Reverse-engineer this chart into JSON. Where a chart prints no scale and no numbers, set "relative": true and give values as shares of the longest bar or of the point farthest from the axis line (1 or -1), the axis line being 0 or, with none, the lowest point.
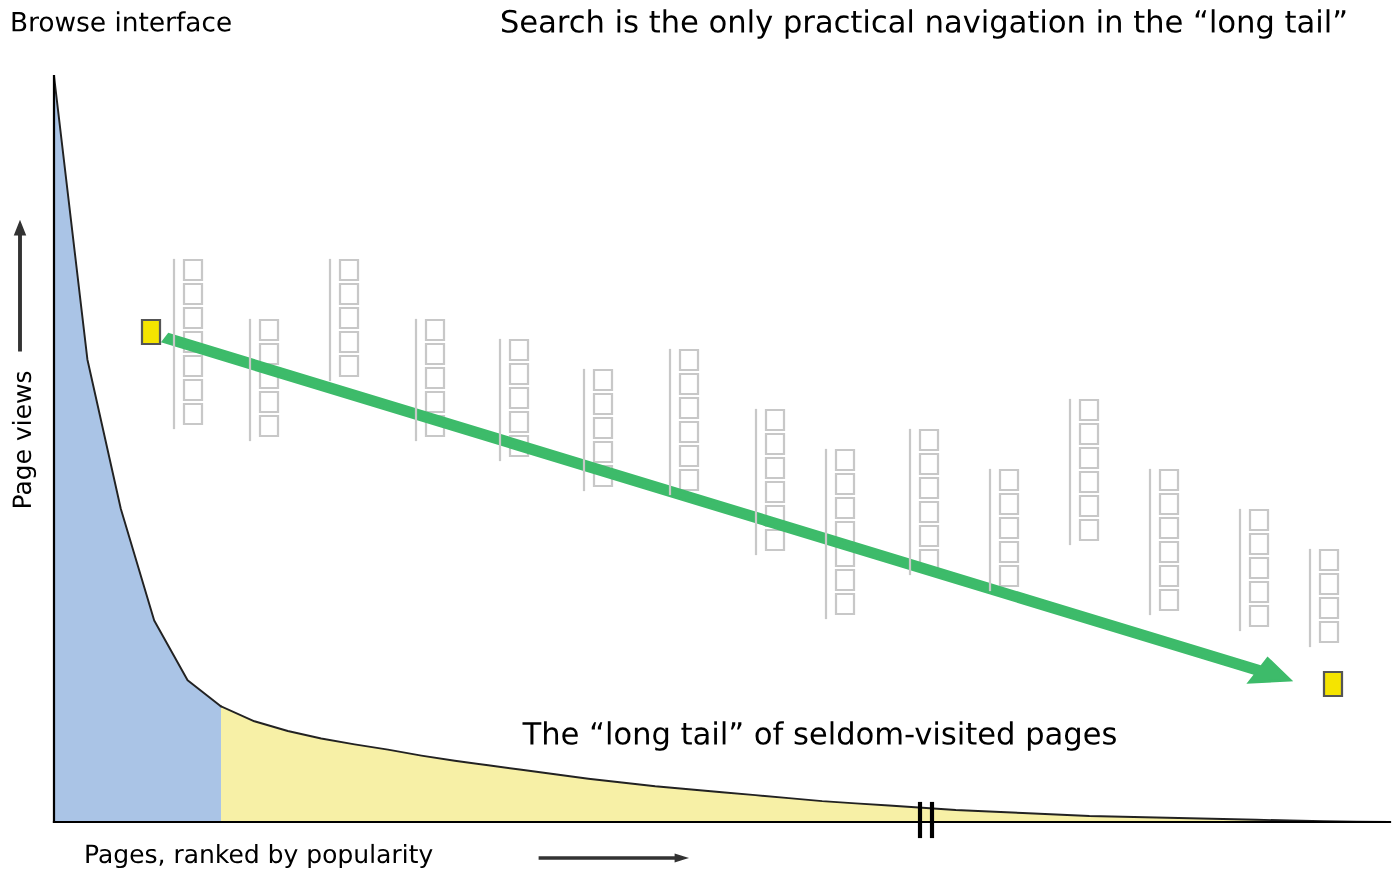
{
  "chart_data": {
    "type": "area",
    "relative": true,
    "xlabel": "Pages, ranked by popularity",
    "ylabel": "Page views",
    "annotations": [
      "Browse interface",
      "Search is the only practical navigation in the “long tail”",
      "The “long tail” of seldom-visited pages"
    ],
    "categories": [
      null,
      null,
      null,
      null,
      null,
      null,
      null,
      null,
      null,
      null,
      null,
      null,
      null,
      null,
      null,
      null,
      null,
      null,
      null,
      null,
      null,
      null,
      null,
      null,
      null,
      null,
      null,
      null,
      null,
      null,
      null,
      null,
      null,
      null,
      null,
      null,
      null,
      null,
      null,
      null,
      null
    ],
    "series": [
      {
        "color": "#aac4e6",
        "values": [
          1.0,
          0.62,
          0.42,
          0.27,
          0.19,
          0.155,
          null,
          null,
          null,
          null,
          null,
          null,
          null,
          null,
          null,
          null,
          null,
          null,
          null,
          null,
          null,
          null,
          null,
          null,
          null,
          null,
          null,
          null,
          null,
          null,
          null,
          null,
          null,
          null,
          null,
          null,
          null,
          null,
          null,
          null,
          null
        ]
      },
      {
        "color": "#f7f0a6",
        "values": [
          null,
          null,
          null,
          null,
          null,
          0.155,
          0.135,
          0.122,
          0.112,
          0.104,
          0.097,
          0.089,
          0.082,
          0.076,
          0.07,
          0.064,
          0.058,
          0.053,
          0.048,
          0.044,
          0.04,
          0.036,
          0.032,
          0.028,
          0.025,
          0.022,
          0.019,
          0.016,
          0.014,
          0.012,
          0.01,
          0.008,
          0.007,
          0.006,
          0.005,
          0.004,
          0.003,
          0.002,
          0.001,
          0.0005,
          0
        ]
      }
    ],
    "grid": false,
    "legend": false
  }
}
